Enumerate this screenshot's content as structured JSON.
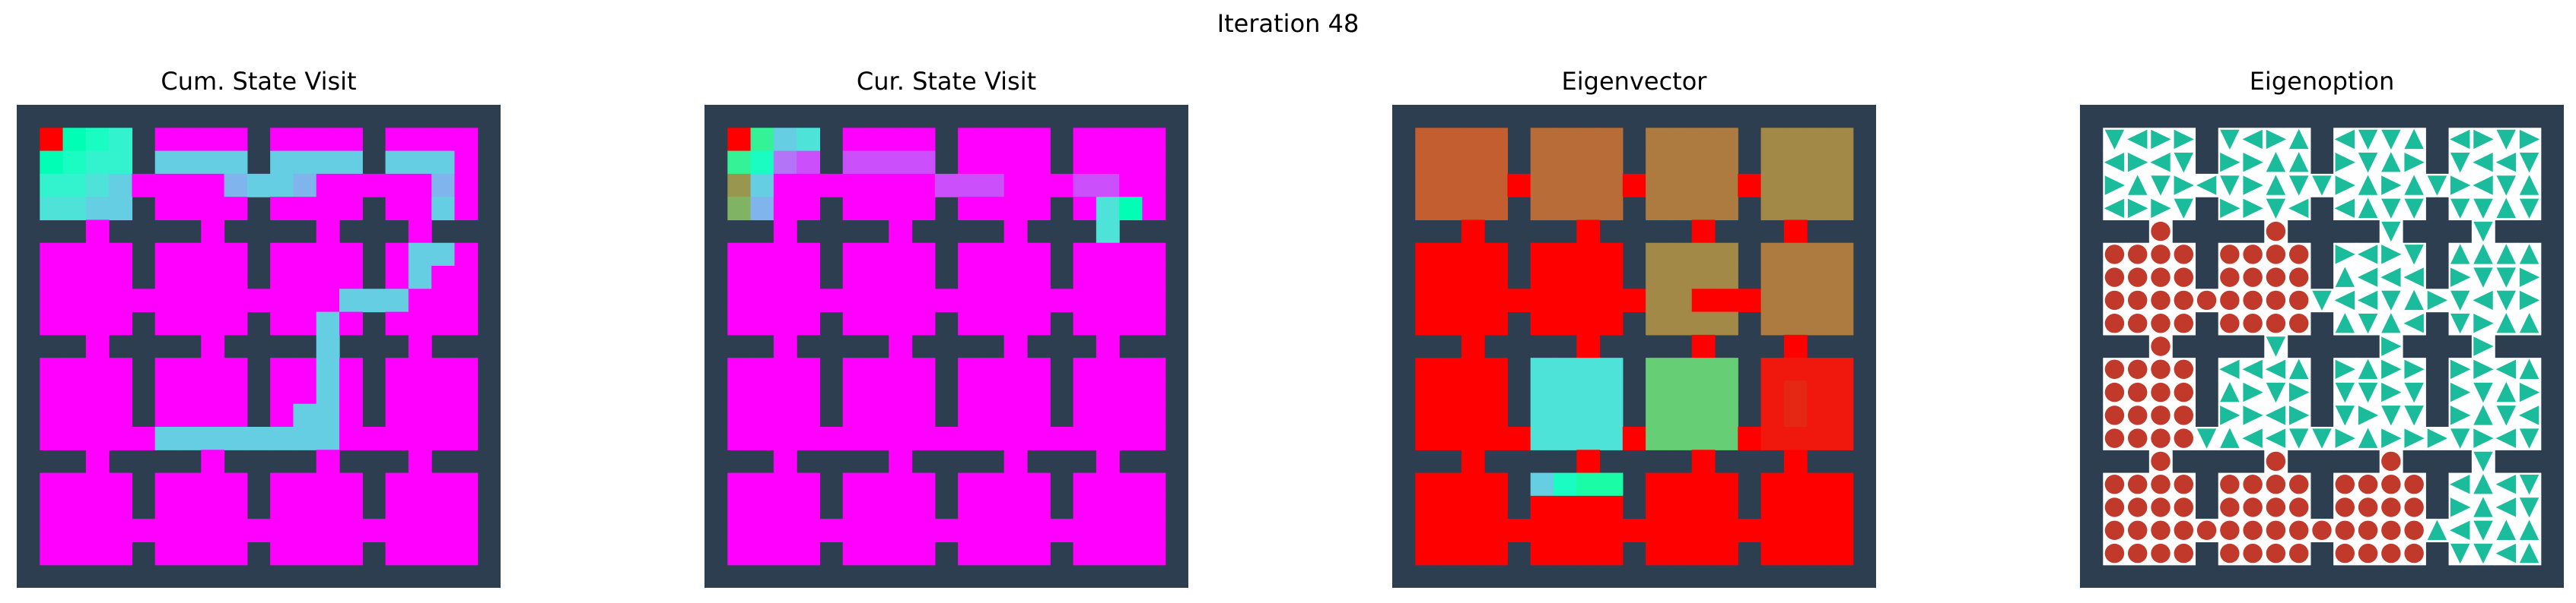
{
  "figure": {
    "title": "Iteration 48"
  },
  "colors": {
    "wall": "#2c3e50",
    "option_arrow": "#1abc9c",
    "option_terminate": "#c0392b",
    "option_bg": "#ffffff"
  },
  "chart_data": [
    {
      "type": "heatmap",
      "title": "Cum. State Visit",
      "colormap": "rainbow",
      "grid_size": 21,
      "value_range": [
        0,
        1
      ],
      "wall_color": "#2c3e50",
      "cells": {
        "1,1": 1.0,
        "1,2": 0.5,
        "1,3": 0.45,
        "1,4": 0.4,
        "1,5": 0.35,
        "2,1": 0.5,
        "2,2": 0.45,
        "2,3": 0.4,
        "2,4": 0.4,
        "2,5": 0.35,
        "2,6": 0.3,
        "2,7": 0.3,
        "2,8": 0.3,
        "2,9": 0.3,
        "2,10": 0.3,
        "2,11": 0.3,
        "2,12": 0.3,
        "2,13": 0.3,
        "2,14": 0.3,
        "2,15": 0.3,
        "2,16": 0.3,
        "2,17": 0.3,
        "2,18": 0.3,
        "3,1": 0.4,
        "3,2": 0.4,
        "3,3": 0.35,
        "3,4": 0.3,
        "3,9": 0.25,
        "3,10": 0.3,
        "3,11": 0.3,
        "3,12": 0.25,
        "3,18": 0.25,
        "4,1": 0.35,
        "4,2": 0.35,
        "4,3": 0.3,
        "4,4": 0.3,
        "4,18": 0.3,
        "5,18": 0.3,
        "6,17": 0.3,
        "6,18": 0.3,
        "7,17": 0.3,
        "8,14": 0.3,
        "8,15": 0.3,
        "8,16": 0.3,
        "9,13": 0.3,
        "10,13": 0.3,
        "11,13": 0.3,
        "12,13": 0.3,
        "13,12": 0.3,
        "13,13": 0.3,
        "14,6": 0.3,
        "14,7": 0.3,
        "14,8": 0.3,
        "14,9": 0.3,
        "14,10": 0.3,
        "14,11": 0.3,
        "14,12": 0.3,
        "14,13": 0.3,
        "15,6": 0.3,
        "15,7": 0.25,
        "15,10": 0.25,
        "15,11": 0.25
      },
      "default_value": 0.0
    },
    {
      "type": "heatmap",
      "title": "Cur. State Visit",
      "colormap": "rainbow",
      "grid_size": 21,
      "value_range": [
        0,
        1
      ],
      "wall_color": "#2c3e50",
      "cells": {
        "1,1": 1.0,
        "1,2": 0.6,
        "1,3": 0.3,
        "1,4": 0.35,
        "2,1": 0.6,
        "2,2": 0.45,
        "2,3": 0.15,
        "2,4": 0.1,
        "2,5": 0.1,
        "2,6": 0.1,
        "2,7": 0.1,
        "2,8": 0.1,
        "2,9": 0.1,
        "2,10": 0.1,
        "3,1": 0.8,
        "3,2": 0.3,
        "3,10": 0.1,
        "3,11": 0.1,
        "3,12": 0.1,
        "3,16": 0.1,
        "3,17": 0.1,
        "4,1": 0.75,
        "4,2": 0.25,
        "4,17": 0.35,
        "4,18": 0.5,
        "5,17": 0.35
      },
      "default_value": 0.0
    },
    {
      "type": "heatmap",
      "title": "Eigenvector",
      "colormap": "rainbow",
      "grid_size": 21,
      "value_range": [
        0,
        1
      ],
      "wall_color": "#2c3e50",
      "cells": {
        "8,13": 1.0,
        "8,14": 1.0,
        "12,17": 0.95,
        "13,17": 0.95,
        "15,7": 0.15,
        "16,6": 0.3,
        "16,7": 0.45,
        "16,8": 0.55,
        "16,9": 0.55
      },
      "region_values": [
        {
          "rows": [
            1,
            4
          ],
          "cols": [
            1,
            4
          ],
          "value": 0.88
        },
        {
          "rows": [
            1,
            4
          ],
          "cols": [
            6,
            9
          ],
          "value": 0.86
        },
        {
          "rows": [
            1,
            4
          ],
          "cols": [
            11,
            14
          ],
          "value": 0.84
        },
        {
          "rows": [
            1,
            4
          ],
          "cols": [
            16,
            19
          ],
          "value": 0.82
        },
        {
          "rows": [
            6,
            9
          ],
          "cols": [
            1,
            4
          ],
          "value": 1.0
        },
        {
          "rows": [
            6,
            9
          ],
          "cols": [
            6,
            9
          ],
          "value": 1.0
        },
        {
          "rows": [
            6,
            9
          ],
          "cols": [
            11,
            14
          ],
          "value": 0.82
        },
        {
          "rows": [
            6,
            9
          ],
          "cols": [
            16,
            19
          ],
          "value": 0.84
        },
        {
          "rows": [
            11,
            14
          ],
          "cols": [
            1,
            4
          ],
          "value": 1.0
        },
        {
          "rows": [
            11,
            14
          ],
          "cols": [
            6,
            9
          ],
          "value": 0.35
        },
        {
          "rows": [
            11,
            14
          ],
          "cols": [
            11,
            14
          ],
          "value": 0.7
        },
        {
          "rows": [
            11,
            14
          ],
          "cols": [
            16,
            19
          ],
          "value": 0.97
        },
        {
          "rows": [
            16,
            19
          ],
          "cols": [
            1,
            4
          ],
          "value": 1.0
        },
        {
          "rows": [
            16,
            19
          ],
          "cols": [
            6,
            9
          ],
          "value": 1.0
        },
        {
          "rows": [
            16,
            19
          ],
          "cols": [
            11,
            14
          ],
          "value": 1.0
        },
        {
          "rows": [
            16,
            19
          ],
          "cols": [
            16,
            19
          ],
          "value": 1.0
        }
      ],
      "default_value": 1.0
    },
    {
      "type": "table",
      "title": "Eigenoption",
      "grid_size": 21,
      "wall_color": "#2c3e50",
      "legend": {
        "arrow": "option action direction",
        "circle": "termination state"
      },
      "rooms_terminate": [
        "1,0",
        "1,1",
        "2,0",
        "3,0",
        "3,1",
        "3,2"
      ],
      "rooms_arrow": [
        "0,0",
        "0,1",
        "0,2",
        "0,3",
        "1,2",
        "1,3",
        "2,1",
        "2,2",
        "2,3",
        "3,3"
      ]
    }
  ]
}
